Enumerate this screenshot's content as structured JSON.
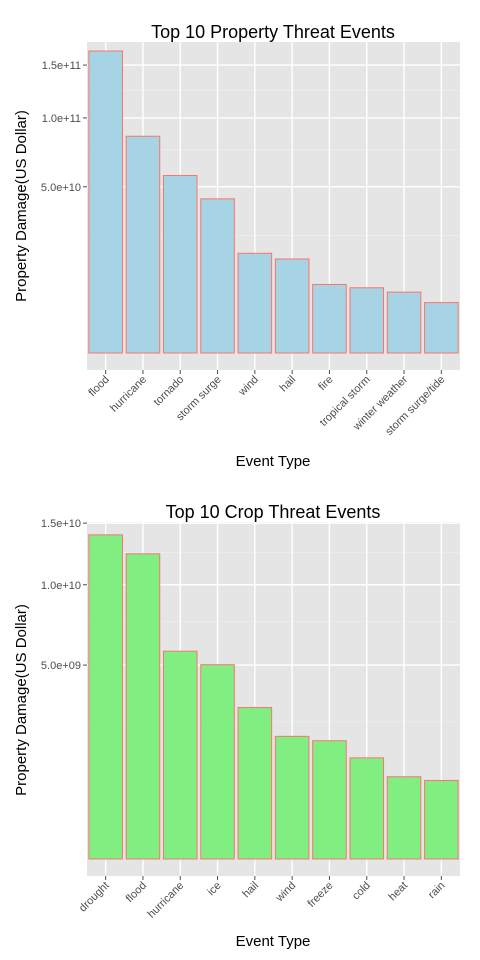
{
  "chart_data": [
    {
      "type": "bar",
      "title": "Top 10 Property Threat Events",
      "xlabel": "Event Type",
      "ylabel": "Property Damage(US Dollar)",
      "y_scale": "sqrt",
      "ylim": [
        0,
        175000000000
      ],
      "y_ticks": [
        50000000000,
        100000000000,
        150000000000
      ],
      "y_tick_labels": [
        "5.0e+10",
        "1.0e+11",
        "1.5e+11"
      ],
      "categories": [
        "flood",
        "hurricane",
        "tornado",
        "storm surge",
        "wind",
        "hail",
        "fire",
        "tropical storm",
        "winter weather",
        "storm surge/tide"
      ],
      "values": [
        165000000000,
        85000000000,
        57000000000,
        43000000000,
        18000000000,
        16000000000,
        8500000000,
        7700000000,
        6700000000,
        4600000000
      ],
      "bar_fill": "#a6d4e4",
      "bar_stroke": "#f8766d",
      "panel_bg": "#e5e5e5",
      "grid": true
    },
    {
      "type": "bar",
      "title": "Top 10 Crop Threat Events",
      "xlabel": "Event Type",
      "ylabel": "Property Damage(US Dollar)",
      "y_scale": "sqrt",
      "ylim": [
        0,
        15100000000
      ],
      "y_ticks": [
        5000000000,
        10000000000,
        15000000000
      ],
      "y_tick_labels": [
        "5.0e+09",
        "1.0e+10",
        "1.5e+10"
      ],
      "categories": [
        "drought",
        "flood",
        "hurricane",
        "ice",
        "hail",
        "wind",
        "freeze",
        "cold",
        "heat",
        "rain"
      ],
      "values": [
        13970000000,
        12380000000,
        5740000000,
        5020000000,
        3050000000,
        2000000000,
        1860000000,
        1360000000,
        900000000,
        820000000
      ],
      "bar_fill": "#80ee80",
      "bar_stroke": "#f8766d",
      "panel_bg": "#e5e5e5",
      "grid": true
    }
  ]
}
